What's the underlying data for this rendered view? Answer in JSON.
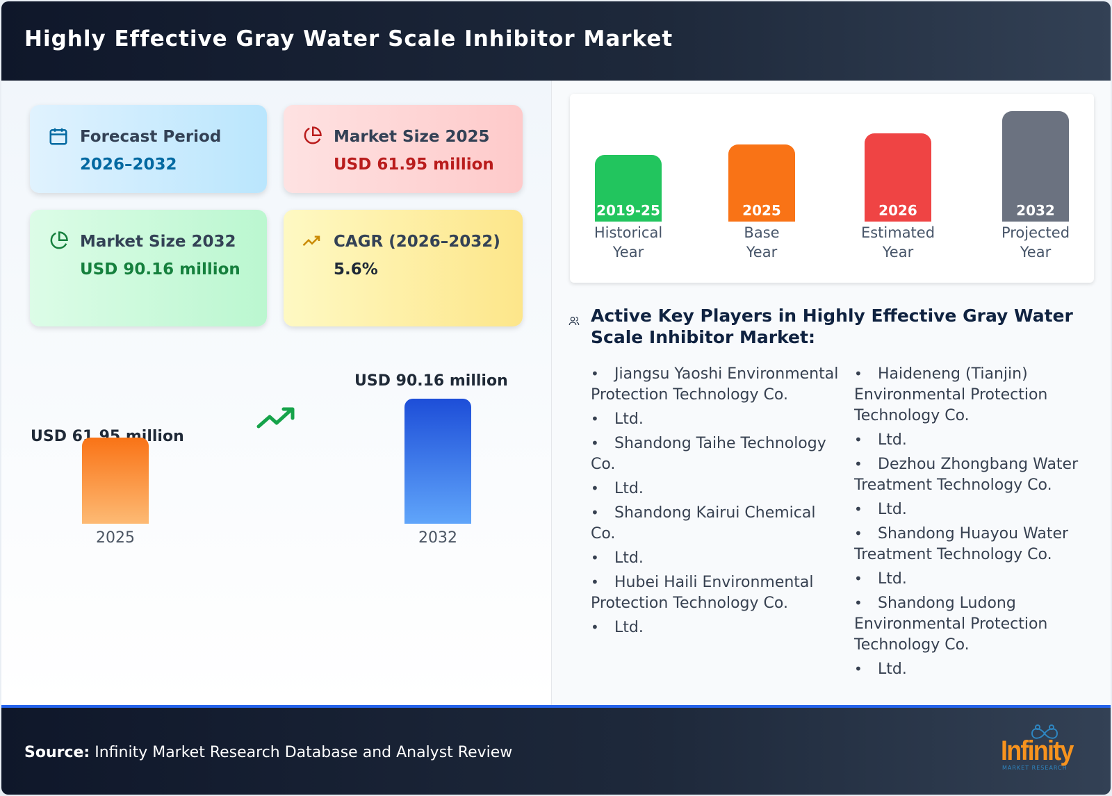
{
  "header": {
    "title": "Highly Effective Gray Water Scale Inhibitor Market"
  },
  "cards": [
    {
      "label": "Forecast Period",
      "value": "2026–2032",
      "icon": "calendar-icon",
      "color": "#0369a1"
    },
    {
      "label": "Market Size 2025",
      "value": "USD 61.95 million",
      "icon": "pie-chart-icon",
      "color": "#b91c1c"
    },
    {
      "label": "Market Size 2032",
      "value": "USD 90.16 million",
      "icon": "pie-chart-icon",
      "color": "#15803d"
    },
    {
      "label": "CAGR (2026–2032)",
      "value": "5.6%",
      "icon": "trending-up-icon",
      "color": "#1f2937"
    }
  ],
  "chart_data": {
    "type": "bar",
    "categories": [
      "2025",
      "2032"
    ],
    "values": [
      61.95,
      90.16
    ],
    "data_labels": [
      "USD 61.95 million",
      "USD 90.16 million"
    ],
    "colors": [
      "#f97316",
      "#2563eb"
    ]
  },
  "timeline": [
    {
      "year": "2019-25",
      "caption": [
        "Historical",
        "Year"
      ],
      "color": "#22c55e"
    },
    {
      "year": "2025",
      "caption": [
        "Base",
        "Year"
      ],
      "color": "#f97316"
    },
    {
      "year": "2026",
      "caption": [
        "Estimated",
        "Year"
      ],
      "color": "#ef4444"
    },
    {
      "year": "2032",
      "caption": [
        "Projected",
        "Year"
      ],
      "color": "#6b7280"
    }
  ],
  "players": {
    "title": "Active Key Players in Highly Effective Gray Water Scale Inhibitor Market:",
    "col1": [
      "Jiangsu Yaoshi Environmental Protection Technology Co.",
      "Ltd.",
      "Shandong Taihe Technology Co.",
      "Ltd.",
      "Shandong Kairui Chemical Co.",
      "Ltd.",
      "Hubei Haili Environmental Protection Technology Co.",
      "Ltd."
    ],
    "col2": [
      "Haideneng (Tianjin) Environmental Protection Technology Co.",
      "Ltd.",
      "Dezhou Zhongbang Water Treatment Technology Co.",
      "Ltd.",
      "Shandong Huayou Water Treatment Technology Co.",
      "Ltd.",
      "Shandong Ludong Environmental Protection Technology Co.",
      "Ltd."
    ]
  },
  "footer": {
    "source_label": "Source:",
    "source_text": "Infinity Market Research Database and Analyst Review",
    "logo_text": "Infinity",
    "logo_sub": "MARKET RESEARCH"
  }
}
